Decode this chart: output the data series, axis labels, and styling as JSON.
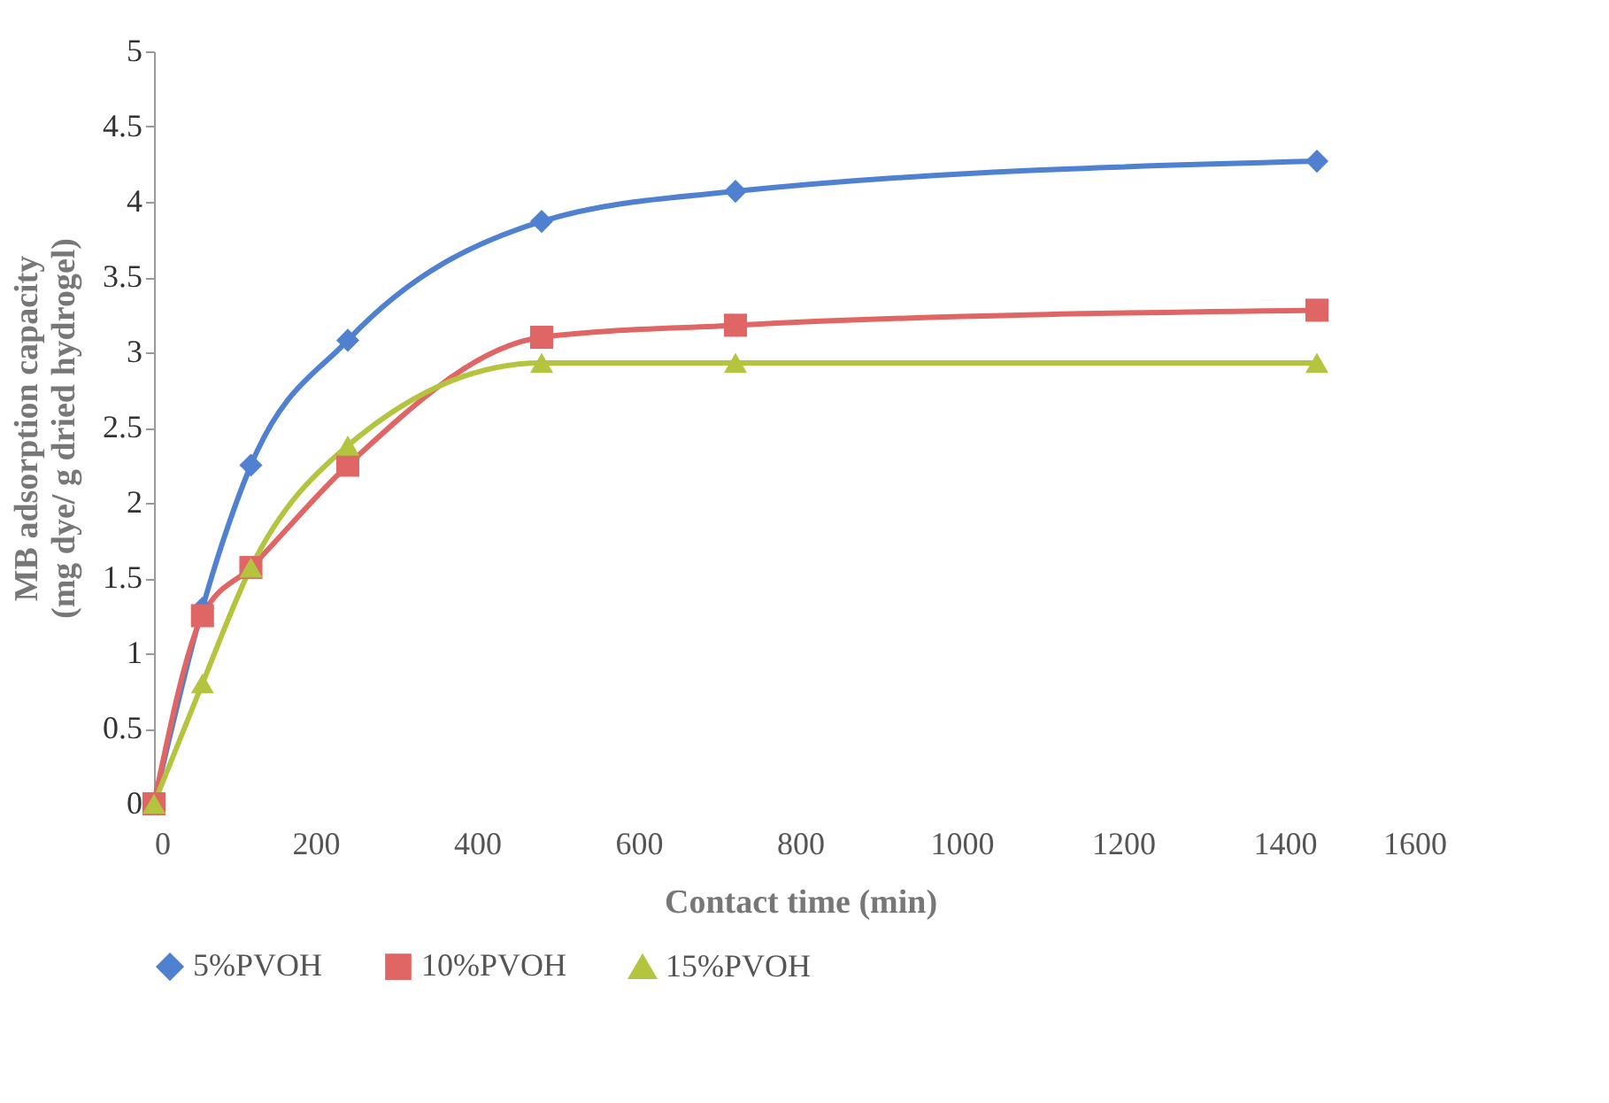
{
  "chart_data": {
    "type": "line",
    "xlabel": "Contact time (min)",
    "ylabel": "MB adsorption capacity\n(mg dye/ g dried hydrogel)",
    "x": [
      0,
      60,
      120,
      240,
      480,
      720,
      1440
    ],
    "series": [
      {
        "name": "5%PVOH",
        "color": "#4f81d0",
        "marker": "diamond",
        "values": [
          0,
          1.3,
          2.25,
          3.08,
          3.87,
          4.07,
          4.27
        ]
      },
      {
        "name": "10%PVOH",
        "color": "#e06666",
        "marker": "square",
        "values": [
          0,
          1.25,
          1.57,
          2.25,
          3.1,
          3.18,
          3.28
        ]
      },
      {
        "name": "15%PVOH",
        "color": "#b5c43f",
        "marker": "triangle",
        "values": [
          0,
          0.8,
          1.57,
          2.38,
          2.93,
          2.93,
          2.93
        ]
      }
    ],
    "xlim": [
      0,
      1600
    ],
    "xticks": [
      0,
      200,
      400,
      600,
      800,
      1000,
      1200,
      1400,
      1600
    ],
    "ylim": [
      0,
      5
    ],
    "yticks": [
      0,
      0.5,
      1,
      1.5,
      2,
      2.5,
      3,
      3.5,
      4,
      4.5,
      5
    ],
    "grid": false,
    "legend": "bottom",
    "line_style": "solid"
  }
}
